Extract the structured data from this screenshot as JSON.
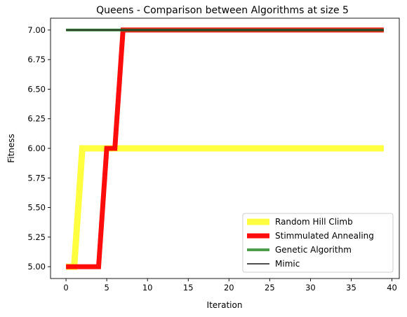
{
  "chart_data": {
    "type": "line",
    "title": "Queens - Comparison between Algorithms at size 5",
    "xlabel": "Iteration",
    "ylabel": "Fitness",
    "xlim": [
      -1.9,
      40.9
    ],
    "ylim": [
      4.9,
      7.1
    ],
    "xticks": [
      0,
      5,
      10,
      15,
      20,
      25,
      30,
      35,
      40
    ],
    "yticks": [
      5.0,
      5.25,
      5.5,
      5.75,
      6.0,
      6.25,
      6.5,
      6.75,
      7.0
    ],
    "xtick_labels": [
      "0",
      "5",
      "10",
      "15",
      "20",
      "25",
      "30",
      "35",
      "40"
    ],
    "ytick_labels": [
      "5.00",
      "5.25",
      "5.50",
      "5.75",
      "6.00",
      "6.25",
      "6.50",
      "6.75",
      "7.00"
    ],
    "grid": false,
    "legend_position": "lower-right",
    "series": [
      {
        "name": "Random Hill Climb",
        "color": "#ffff00",
        "opacity": 0.75,
        "x": [
          0,
          1,
          2,
          39
        ],
        "y": [
          5,
          5,
          6,
          6
        ]
      },
      {
        "name": "Stimmulated Annealing",
        "color": "#ff0000",
        "opacity": 0.95,
        "x": [
          0,
          4,
          5,
          6,
          7,
          39
        ],
        "y": [
          5,
          5,
          6,
          6,
          7,
          7
        ]
      },
      {
        "name": "Genetic Algorithm",
        "color": "#2e8b2e",
        "opacity": 0.85,
        "x": [
          0,
          39
        ],
        "y": [
          7,
          7
        ]
      },
      {
        "name": "Mimic",
        "color": "#222222",
        "opacity": 0.8,
        "x": [
          0,
          39
        ],
        "y": [
          7,
          7
        ]
      }
    ]
  }
}
